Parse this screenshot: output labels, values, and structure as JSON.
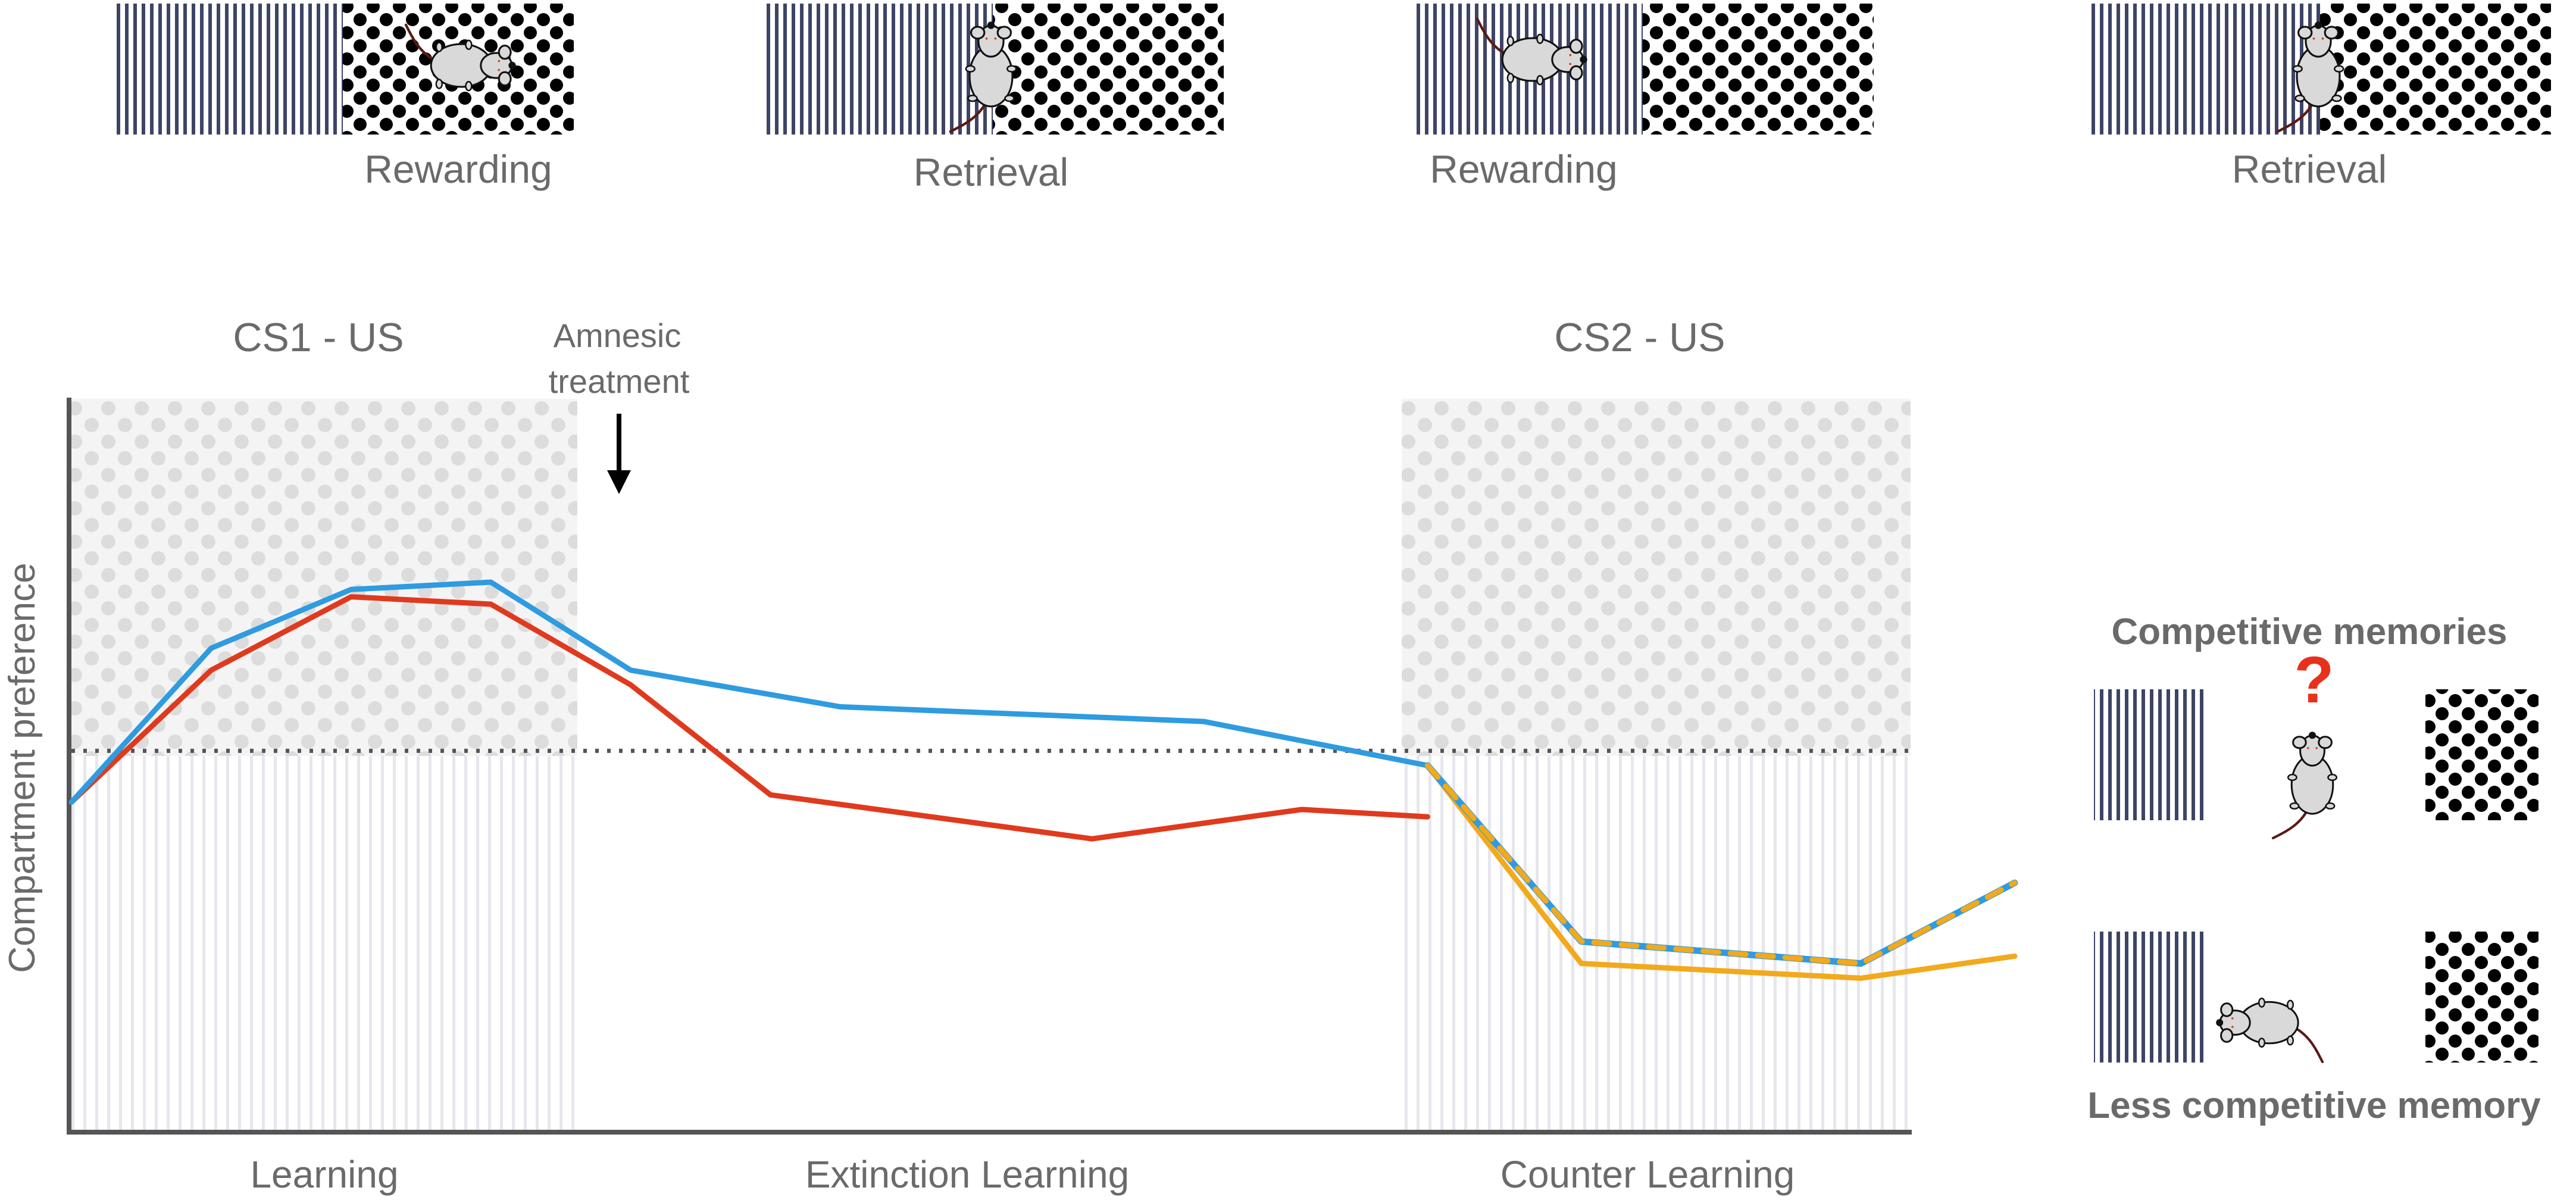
{
  "top_panels": [
    {
      "label": "Rewarding"
    },
    {
      "label": "Retrieval"
    },
    {
      "label": "Rewarding"
    },
    {
      "label": "Retrieval"
    }
  ],
  "phase_headers": {
    "cs1": "CS1 -  US",
    "cs2": "CS2 -  US",
    "amnesic_line1": "Amnesic",
    "amnesic_line2": "treatment"
  },
  "axis": {
    "ylabel": "Compartment preference"
  },
  "phases": {
    "learning": "Learning",
    "extinction": "Extinction Learning",
    "counter": "Counter Learning"
  },
  "legend": {
    "competitive_title": "Competitive memories",
    "question_mark": "?",
    "less_competitive_title": "Less competitive memory"
  },
  "colors": {
    "blue": "#2f9be0",
    "red": "#e03a1e",
    "orange": "#f2a91c",
    "stripe": "#3d4466",
    "axis": "#555555",
    "mouse_body": "#d9d9d9",
    "question": "#e8311a"
  },
  "chart_data": {
    "type": "line",
    "xlabel": "",
    "ylabel": "Compartment preference",
    "series": [
      {
        "values": [
          [
            0,
            45
          ],
          [
            10,
            63
          ],
          [
            20,
            73
          ],
          [
            30,
            72
          ],
          [
            40,
            61
          ],
          [
            50,
            46
          ],
          [
            73,
            40
          ],
          [
            88,
            44
          ],
          [
            97,
            43
          ]
        ]
      },
      {
        "values": [
          [
            0,
            45
          ],
          [
            10,
            66
          ],
          [
            20,
            74
          ],
          [
            30,
            75
          ],
          [
            40,
            63
          ],
          [
            55,
            58
          ],
          [
            81,
            56
          ],
          [
            97,
            50
          ]
        ]
      },
      {
        "values": [
          [
            97,
            50
          ],
          [
            108,
            26
          ],
          [
            128,
            23
          ],
          [
            139,
            34
          ]
        ]
      },
      {
        "values": [
          [
            97,
            50
          ],
          [
            108,
            23
          ],
          [
            128,
            21
          ],
          [
            139,
            24
          ]
        ]
      }
    ],
    "reference_line": 52,
    "xlim": [
      0,
      139
    ],
    "ylim": [
      0,
      100
    ]
  }
}
